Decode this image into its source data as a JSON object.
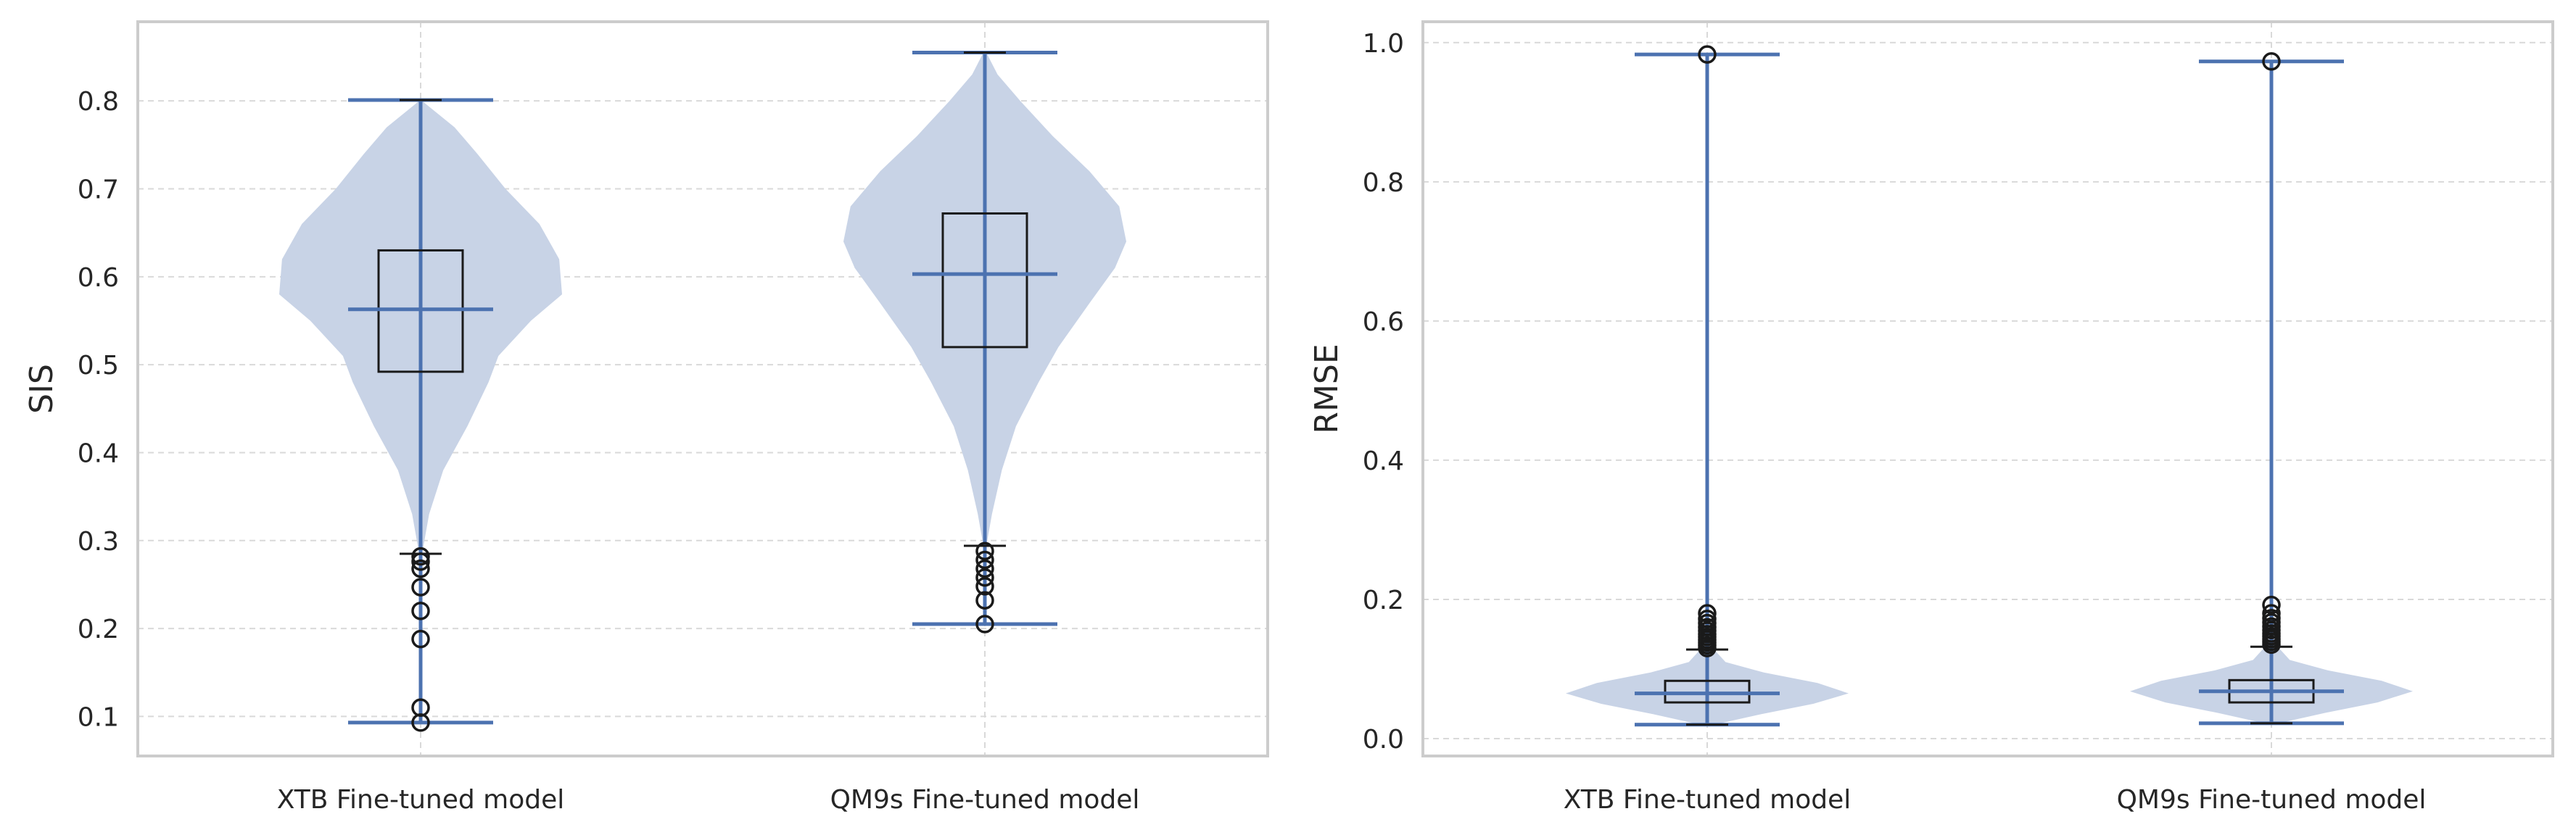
{
  "chart_data": [
    {
      "type": "violin",
      "ylabel": "SIS",
      "ylim": [
        0.055,
        0.89
      ],
      "yticks": [
        0.1,
        0.2,
        0.3,
        0.4,
        0.5,
        0.6,
        0.7,
        0.8
      ],
      "ytick_labels": [
        "0.1",
        "0.2",
        "0.3",
        "0.4",
        "0.5",
        "0.6",
        "0.7",
        "0.8"
      ],
      "grid": true,
      "categories": [
        "XTB Fine-tuned model",
        "QM9s Fine-tuned model"
      ],
      "series": [
        {
          "min": 0.093,
          "max": 0.801,
          "median": 0.563,
          "q1": 0.492,
          "q3": 0.63,
          "whisker_low": 0.285,
          "whisker_high": 0.801,
          "outliers": [
            0.093,
            0.11,
            0.188,
            0.22,
            0.247,
            0.268,
            0.276,
            0.282
          ],
          "density": [
            [
              0.285,
              0.01
            ],
            [
              0.33,
              0.06
            ],
            [
              0.38,
              0.16
            ],
            [
              0.43,
              0.33
            ],
            [
              0.48,
              0.48
            ],
            [
              0.51,
              0.55
            ],
            [
              0.55,
              0.78
            ],
            [
              0.58,
              1.0
            ],
            [
              0.62,
              0.98
            ],
            [
              0.66,
              0.84
            ],
            [
              0.7,
              0.6
            ],
            [
              0.74,
              0.4
            ],
            [
              0.77,
              0.24
            ],
            [
              0.8,
              0.01
            ]
          ]
        },
        {
          "min": 0.205,
          "max": 0.855,
          "median": 0.603,
          "q1": 0.52,
          "q3": 0.672,
          "whisker_low": 0.294,
          "whisker_high": 0.855,
          "outliers": [
            0.205,
            0.232,
            0.248,
            0.258,
            0.268,
            0.278,
            0.288
          ],
          "density": [
            [
              0.294,
              0.01
            ],
            [
              0.33,
              0.05
            ],
            [
              0.38,
              0.12
            ],
            [
              0.43,
              0.22
            ],
            [
              0.48,
              0.38
            ],
            [
              0.52,
              0.52
            ],
            [
              0.57,
              0.74
            ],
            [
              0.61,
              0.92
            ],
            [
              0.64,
              1.0
            ],
            [
              0.68,
              0.95
            ],
            [
              0.72,
              0.74
            ],
            [
              0.76,
              0.48
            ],
            [
              0.8,
              0.25
            ],
            [
              0.83,
              0.09
            ],
            [
              0.855,
              0.01
            ]
          ]
        }
      ]
    },
    {
      "type": "violin",
      "ylabel": "RMSE",
      "ylim": [
        -0.025,
        1.03
      ],
      "yticks": [
        0.0,
        0.2,
        0.4,
        0.6,
        0.8,
        1.0
      ],
      "ytick_labels": [
        "0.0",
        "0.2",
        "0.4",
        "0.6",
        "0.8",
        "1.0"
      ],
      "grid": true,
      "categories": [
        "XTB Fine-tuned model",
        "QM9s Fine-tuned model"
      ],
      "series": [
        {
          "min": 0.02,
          "max": 0.983,
          "median": 0.065,
          "q1": 0.052,
          "q3": 0.083,
          "whisker_low": 0.02,
          "whisker_high": 0.128,
          "outliers": [
            0.13,
            0.134,
            0.138,
            0.142,
            0.146,
            0.15,
            0.155,
            0.16,
            0.166,
            0.172,
            0.18,
            0.983
          ],
          "density": [
            [
              0.02,
              0.05
            ],
            [
              0.035,
              0.38
            ],
            [
              0.05,
              0.75
            ],
            [
              0.065,
              1.0
            ],
            [
              0.08,
              0.78
            ],
            [
              0.095,
              0.4
            ],
            [
              0.11,
              0.13
            ],
            [
              0.13,
              0.04
            ],
            [
              0.16,
              0.02
            ],
            [
              0.2,
              0.005
            ],
            [
              0.983,
              0.001
            ]
          ]
        },
        {
          "min": 0.022,
          "max": 0.973,
          "median": 0.068,
          "q1": 0.052,
          "q3": 0.084,
          "whisker_low": 0.022,
          "whisker_high": 0.132,
          "outliers": [
            0.135,
            0.139,
            0.143,
            0.147,
            0.151,
            0.156,
            0.161,
            0.167,
            0.173,
            0.18,
            0.192,
            0.973
          ],
          "density": [
            [
              0.022,
              0.05
            ],
            [
              0.037,
              0.38
            ],
            [
              0.052,
              0.75
            ],
            [
              0.068,
              1.0
            ],
            [
              0.083,
              0.78
            ],
            [
              0.098,
              0.4
            ],
            [
              0.113,
              0.13
            ],
            [
              0.133,
              0.04
            ],
            [
              0.163,
              0.02
            ],
            [
              0.2,
              0.005
            ],
            [
              0.973,
              0.001
            ]
          ]
        }
      ]
    }
  ]
}
